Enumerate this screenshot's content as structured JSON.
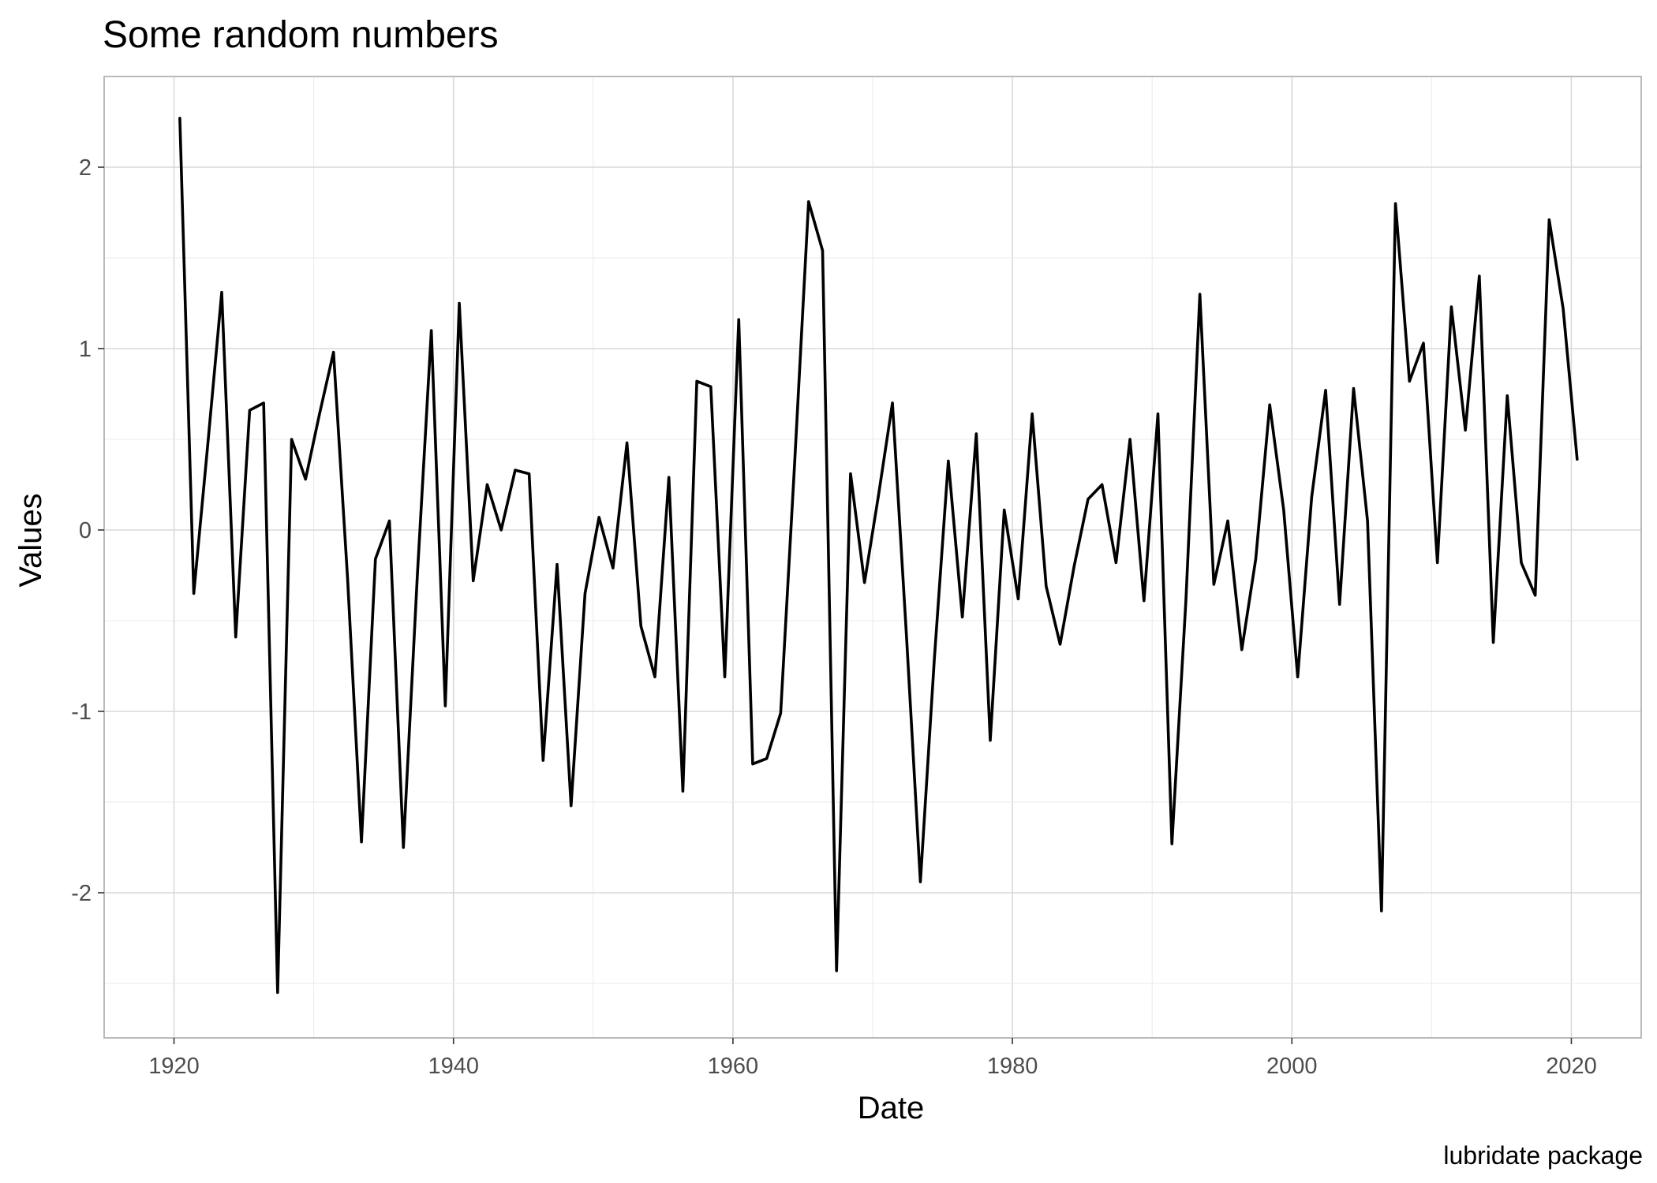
{
  "chart_data": {
    "type": "line",
    "title": "Some random numbers",
    "xlabel": "Date",
    "ylabel": "Values",
    "caption": "lubridate package",
    "x_ticks": [
      "1920",
      "1940",
      "1960",
      "1980",
      "2000",
      "2020"
    ],
    "y_ticks": [
      "-2",
      "-1",
      "0",
      "1",
      "2"
    ],
    "xlim": [
      "1915-01-01",
      "2025-01-01"
    ],
    "ylim": [
      -2.8,
      2.5
    ],
    "grid": true,
    "series": [
      {
        "color": "#000000",
        "x": [
          "1920-06-01",
          "1921-06-01",
          "1922-06-01",
          "1923-06-01",
          "1924-06-01",
          "1925-06-01",
          "1926-06-01",
          "1927-06-01",
          "1928-06-01",
          "1929-06-01",
          "1930-06-01",
          "1931-06-01",
          "1932-06-01",
          "1933-06-01",
          "1934-06-01",
          "1935-06-01",
          "1936-06-01",
          "1937-06-01",
          "1938-06-01",
          "1939-06-01",
          "1940-06-01",
          "1941-06-01",
          "1942-06-01",
          "1943-06-01",
          "1944-06-01",
          "1945-06-01",
          "1946-06-01",
          "1947-06-01",
          "1948-06-01",
          "1949-06-01",
          "1950-06-01",
          "1951-06-01",
          "1952-06-01",
          "1953-06-01",
          "1954-06-01",
          "1955-06-01",
          "1956-06-01",
          "1957-06-01",
          "1958-06-01",
          "1959-06-01",
          "1960-06-01",
          "1961-06-01",
          "1962-06-01",
          "1963-06-01",
          "1964-06-01",
          "1965-06-01",
          "1966-06-01",
          "1967-06-01",
          "1968-06-01",
          "1969-06-01",
          "1970-06-01",
          "1971-06-01",
          "1972-06-01",
          "1973-06-01",
          "1974-06-01",
          "1975-06-01",
          "1976-06-01",
          "1977-06-01",
          "1978-06-01",
          "1979-06-01",
          "1980-06-01",
          "1981-06-01",
          "1982-06-01",
          "1983-06-01",
          "1984-06-01",
          "1985-06-01",
          "1986-06-01",
          "1987-06-01",
          "1988-06-01",
          "1989-06-01",
          "1990-06-01",
          "1991-06-01",
          "1992-06-01",
          "1993-06-01",
          "1994-06-01",
          "1995-06-01",
          "1996-06-01",
          "1997-06-01",
          "1998-06-01",
          "1999-06-01",
          "2000-06-01",
          "2001-06-01",
          "2002-06-01",
          "2003-06-01",
          "2004-06-01",
          "2005-06-01",
          "2006-06-01",
          "2007-06-01",
          "2008-06-01",
          "2009-06-01",
          "2010-06-01",
          "2011-06-01",
          "2012-06-01",
          "2013-06-01",
          "2014-06-01",
          "2015-06-01",
          "2016-06-01",
          "2017-06-01",
          "2018-06-01",
          "2019-06-01",
          "2020-06-01"
        ],
        "y": [
          2.27,
          -0.35,
          0.47,
          1.31,
          -0.59,
          0.66,
          0.7,
          -2.55,
          0.5,
          0.28,
          0.64,
          0.98,
          -0.26,
          -1.72,
          -0.16,
          0.05,
          -1.75,
          -0.25,
          1.1,
          -0.97,
          1.25,
          -0.28,
          0.25,
          0.0,
          0.33,
          0.31,
          -1.27,
          -0.19,
          -1.52,
          -0.35,
          0.07,
          -0.21,
          0.48,
          -0.53,
          -0.81,
          0.29,
          -1.44,
          0.82,
          0.79,
          -0.81,
          1.16,
          -1.29,
          -1.26,
          -1.01,
          0.37,
          1.81,
          1.54,
          -2.43,
          0.31,
          -0.29,
          0.19,
          0.7,
          -0.58,
          -1.94,
          -0.71,
          0.38,
          -0.48,
          0.53,
          -1.16,
          0.11,
          -0.38,
          0.64,
          -0.31,
          -0.63,
          -0.2,
          0.17,
          0.25,
          -0.18,
          0.5,
          -0.39,
          0.64,
          -1.73,
          -0.39,
          1.3,
          -0.3,
          0.05,
          -0.66,
          -0.16,
          0.69,
          0.11,
          -0.81,
          0.18,
          0.77,
          -0.41,
          0.78,
          0.05,
          -2.1,
          1.8,
          0.82,
          1.03,
          -0.18,
          1.23,
          0.55,
          1.4,
          -0.62,
          0.74,
          -0.18,
          -0.36,
          1.71,
          1.22,
          0.39
        ]
      }
    ]
  }
}
